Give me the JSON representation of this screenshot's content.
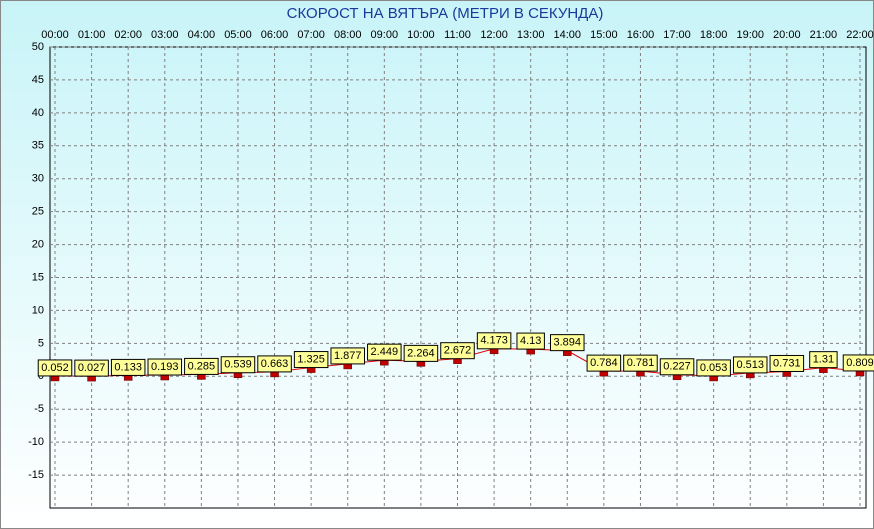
{
  "chart_data": {
    "type": "line",
    "title": "СКОРОСТ НА ВЯТЪРА (МЕТРИ В СЕКУНДА)",
    "categories": [
      "00:00",
      "01:00",
      "02:00",
      "03:00",
      "04:00",
      "05:00",
      "06:00",
      "07:00",
      "08:00",
      "09:00",
      "10:00",
      "11:00",
      "12:00",
      "13:00",
      "14:00",
      "15:00",
      "16:00",
      "17:00",
      "18:00",
      "19:00",
      "20:00",
      "21:00",
      "22:00"
    ],
    "series": [
      {
        "color": "#e00000",
        "values": [
          0.052,
          0.027,
          0.133,
          0.193,
          0.285,
          0.539,
          0.663,
          1.325,
          1.877,
          2.449,
          2.264,
          2.672,
          4.173,
          4.13,
          3.894,
          0.784,
          0.781,
          0.227,
          0.053,
          0.513,
          0.731,
          1.31,
          0.809
        ]
      }
    ],
    "ylim": [
      -20,
      50
    ],
    "yticks": [
      50,
      45,
      40,
      35,
      30,
      25,
      20,
      15,
      10,
      5,
      0,
      -5,
      -10,
      -15
    ],
    "grid": true
  }
}
